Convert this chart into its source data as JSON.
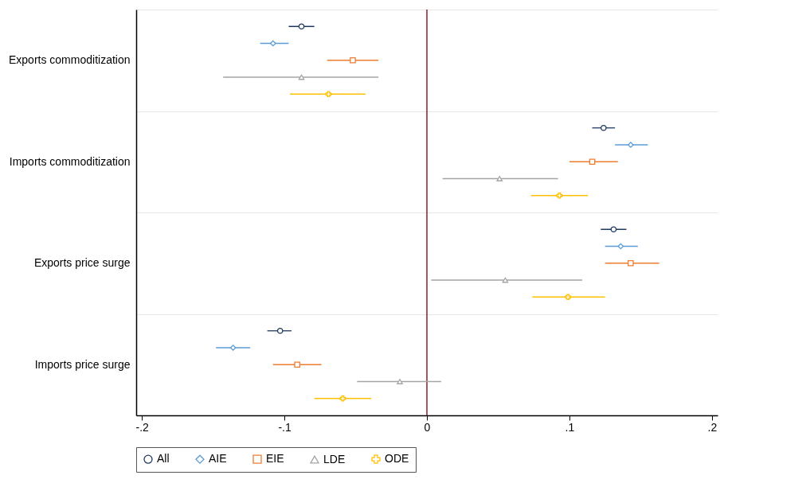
{
  "chart_data": {
    "type": "scatter",
    "orientation": "horizontal",
    "categories": [
      "Exports commoditization",
      "Imports commoditization",
      "Exports price surge",
      "Imports price surge"
    ],
    "series": [
      {
        "name": "All",
        "color": "#1f3a5f",
        "marker": "circle",
        "values": [
          -0.088,
          0.124,
          0.131,
          -0.103
        ],
        "errors": [
          [
            -0.097,
            -0.079
          ],
          [
            0.116,
            0.132
          ],
          [
            0.122,
            0.14
          ],
          [
            -0.112,
            -0.095
          ]
        ]
      },
      {
        "name": "AIE",
        "color": "#5b9bd5",
        "marker": "diamond",
        "values": [
          -0.108,
          0.143,
          0.136,
          -0.136
        ],
        "errors": [
          [
            -0.117,
            -0.097
          ],
          [
            0.132,
            0.155
          ],
          [
            0.125,
            0.148
          ],
          [
            -0.148,
            -0.124
          ]
        ]
      },
      {
        "name": "EIE",
        "color": "#ed7d31",
        "marker": "square",
        "values": [
          -0.052,
          0.116,
          0.143,
          -0.091
        ],
        "errors": [
          [
            -0.07,
            -0.034
          ],
          [
            0.1,
            0.134
          ],
          [
            0.125,
            0.163
          ],
          [
            -0.108,
            -0.074
          ]
        ]
      },
      {
        "name": "LDE",
        "color": "#a5a5a5",
        "marker": "triangle",
        "values": [
          -0.088,
          0.051,
          0.055,
          -0.019
        ],
        "errors": [
          [
            -0.143,
            -0.034
          ],
          [
            0.011,
            0.092
          ],
          [
            0.003,
            0.109
          ],
          [
            -0.049,
            0.01
          ]
        ]
      },
      {
        "name": "ODE",
        "color": "#ffc000",
        "marker": "cross",
        "values": [
          -0.069,
          0.093,
          0.099,
          -0.059
        ],
        "errors": [
          [
            -0.096,
            -0.043
          ],
          [
            0.073,
            0.113
          ],
          [
            0.074,
            0.125
          ],
          [
            -0.079,
            -0.039
          ]
        ]
      }
    ],
    "xlim": [
      -0.204,
      0.204
    ],
    "xticks": [
      {
        "value": -0.2,
        "label": "-.2"
      },
      {
        "value": -0.1,
        "label": "-.1"
      },
      0,
      {
        "value": 0.1,
        "label": ".1"
      },
      {
        "value": 0.2,
        "label": ".2"
      }
    ],
    "ref_lines": [
      {
        "axis": "x",
        "value": 0,
        "color": "#8b1a2b"
      }
    ],
    "grid": "y",
    "legend": "bottom"
  }
}
